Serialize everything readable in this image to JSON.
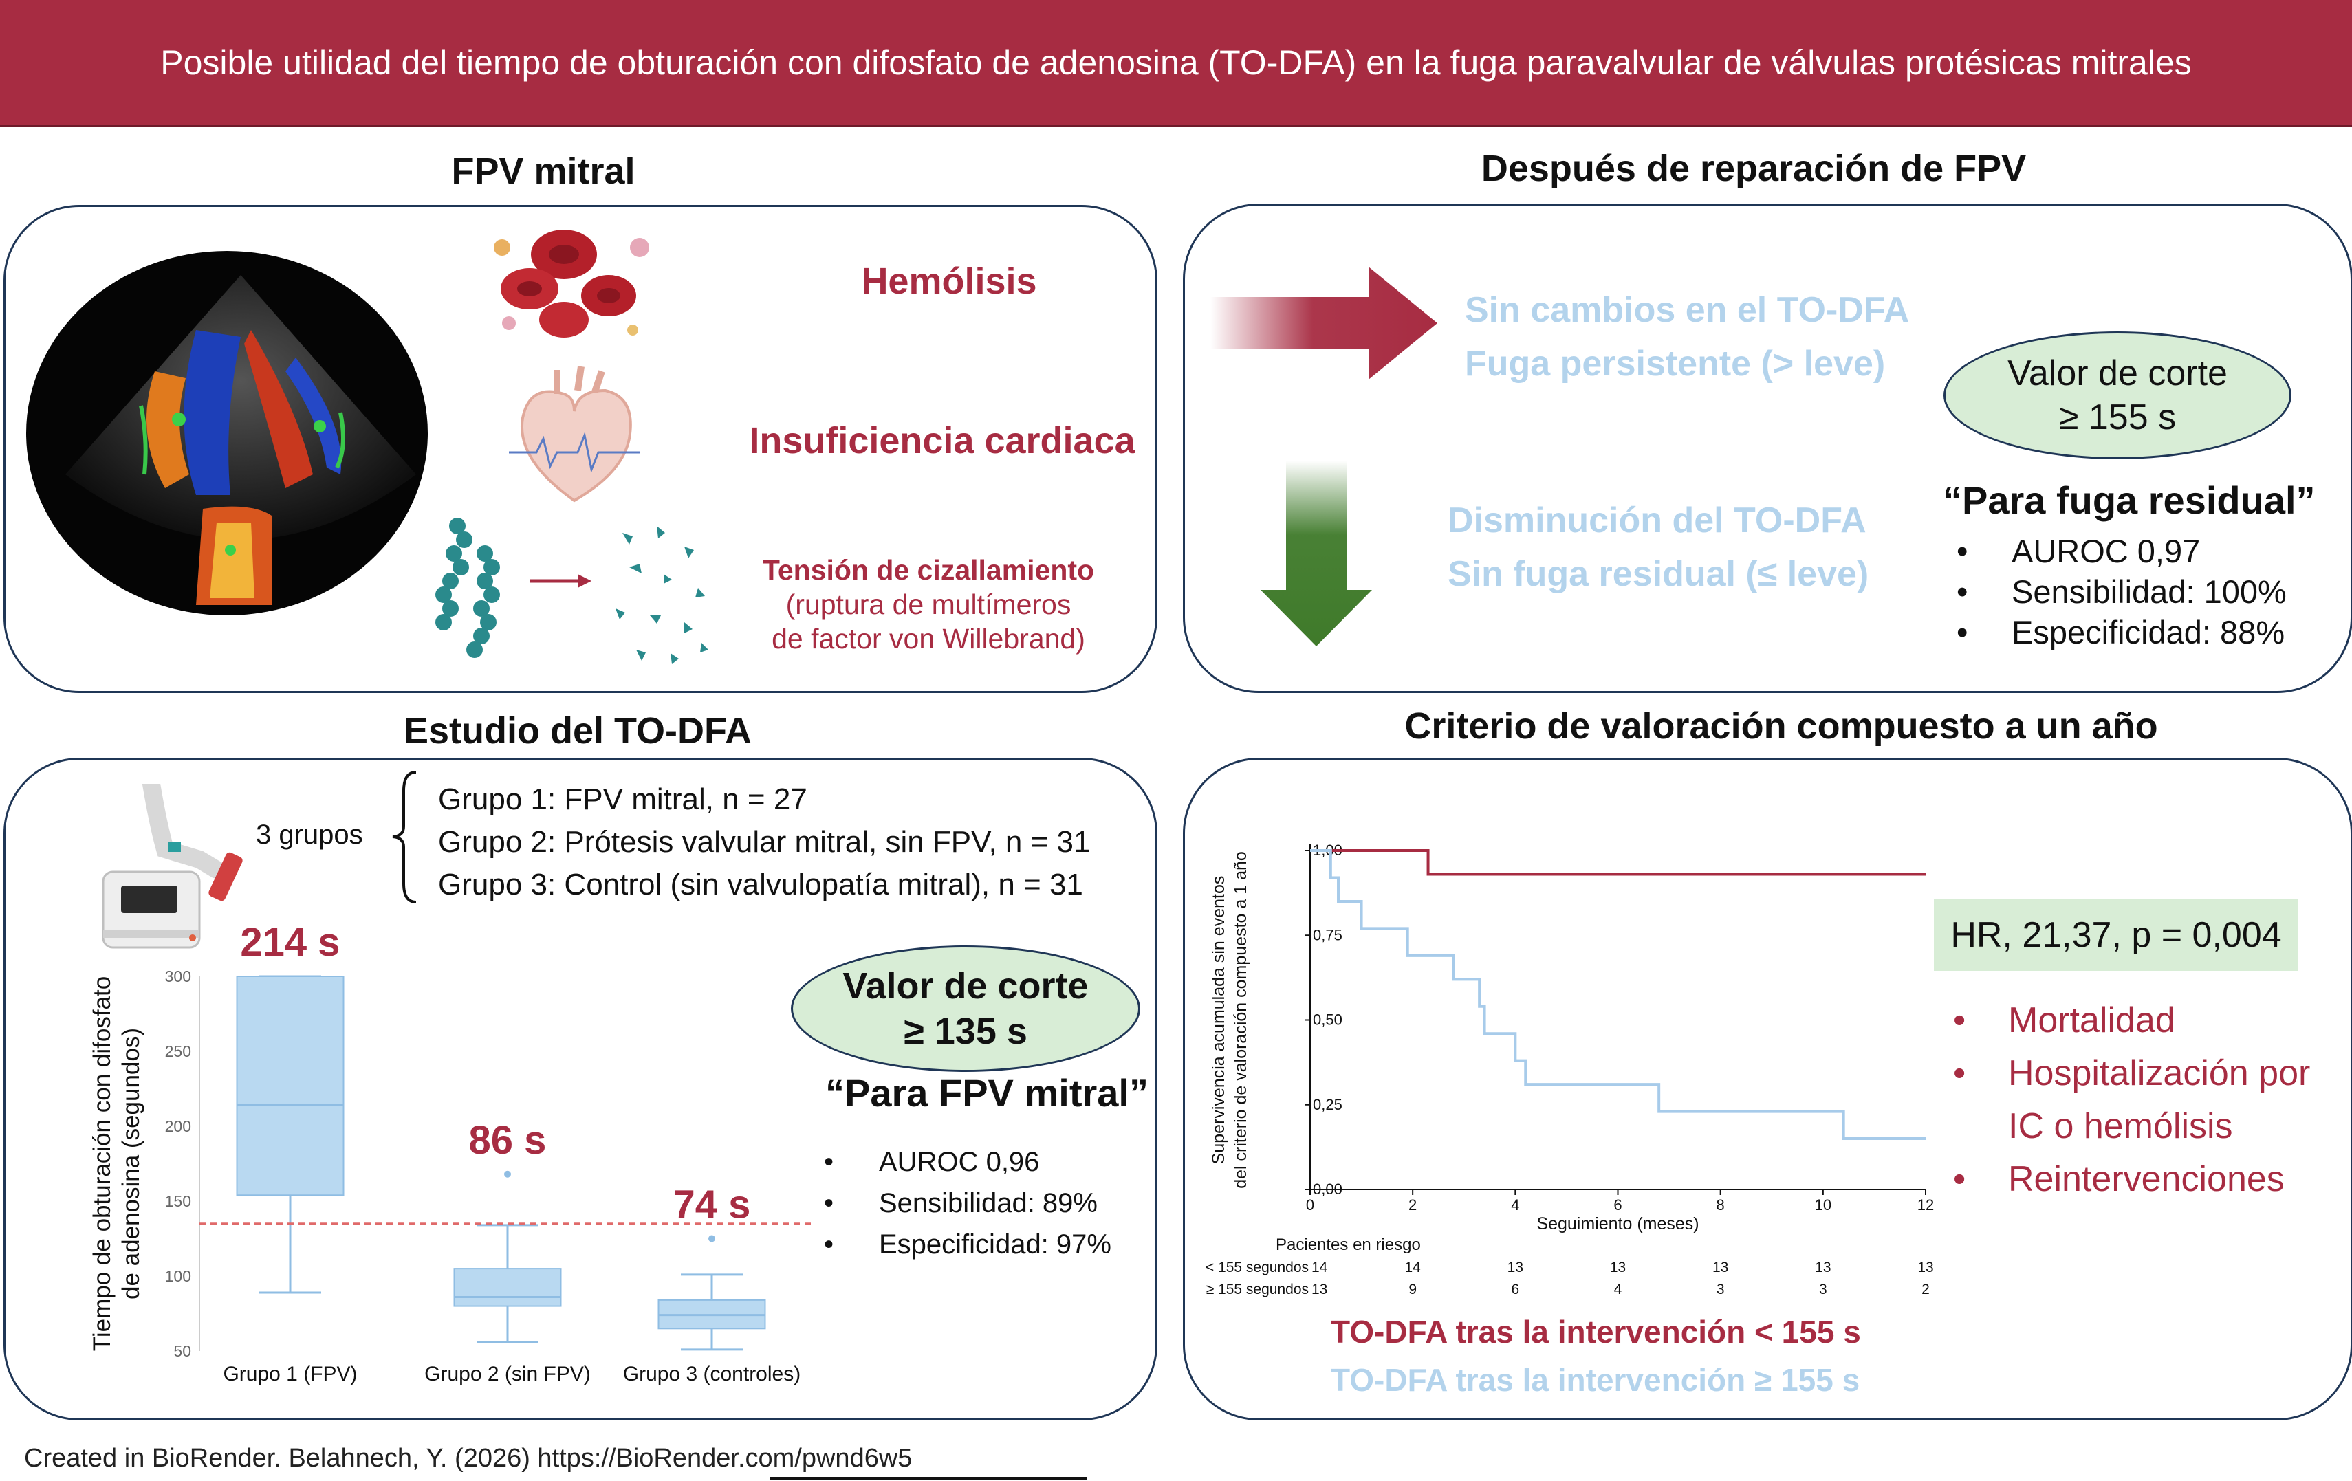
{
  "title": "Posible utilidad del tiempo de obturación con difosfato de adenosina (TO-DFA) en la fuga paravalvular de válvulas protésicas mitrales",
  "panel_fpv": {
    "title": "FPV mitral",
    "hemolysis": "Hemólisis",
    "heart_failure": "Insuficiencia cardiaca",
    "shear_title": "Tensión de cizallamiento",
    "shear_line1": "(ruptura de multímeros",
    "shear_line2": "de factor von Willebrand)"
  },
  "panel_after": {
    "title": "Después de reparación de FPV",
    "no_change_line1": "Sin cambios en el TO-DFA",
    "no_change_line2": "Fuga persistente (> leve)",
    "decrease_line1": "Disminución del TO-DFA",
    "decrease_line2": "Sin fuga residual (≤ leve)",
    "cutoff_line1": "Valor de corte",
    "cutoff_line2": "≥ 155 s",
    "residual_title": "“Para fuga residual”",
    "stats": [
      "AUROC 0,97",
      "Sensibilidad: 100%",
      "Especificidad: 88%"
    ]
  },
  "panel_study": {
    "title": "Estudio del TO-DFA",
    "groups_label": "3 grupos",
    "groups": [
      "Grupo 1: FPV mitral, n = 27",
      "Grupo 2: Prótesis valvular mitral, sin FPV, n = 31",
      "Grupo 3: Control (sin valvulopatía mitral), n = 31"
    ],
    "cutoff_line1": "Valor de corte",
    "cutoff_line2": "≥ 135 s",
    "fpv_title": "“Para FPV mitral”",
    "stats": [
      "AUROC 0,96",
      "Sensibilidad: 89%",
      "Especificidad: 97%"
    ]
  },
  "panel_endpoint": {
    "title": "Criterio de valoración compuesto a un año",
    "hr": "HR, 21,37, p = 0,004",
    "events": [
      "Mortalidad",
      "Hospitalización por",
      "IC o hemólisis",
      "Reintervenciones"
    ],
    "legend_low": "TO-DFA tras la intervención < 155 s",
    "legend_high": "TO-DFA tras la intervención ≥ 155 s"
  },
  "credit": "Created in BioRender. Belahnech, Y. (2026) https://BioRender.com/pwnd6w5",
  "chart_data": [
    {
      "type": "box",
      "ylabel": "Tiempo de obturación con difosfato de adenosina (segundos)",
      "ylim": [
        50,
        300
      ],
      "yticks": [
        50,
        100,
        150,
        200,
        250,
        300
      ],
      "categories": [
        "Grupo 1 (FPV)",
        "Grupo 2 (sin FPV)",
        "Grupo 3 (controles)"
      ],
      "boxes": [
        {
          "whisker_low": 89,
          "q1": 154,
          "median": 214,
          "q3": 300,
          "whisker_high": 300,
          "outliers": [],
          "label": "214 s"
        },
        {
          "whisker_low": 56,
          "q1": 80,
          "median": 86,
          "q3": 105,
          "whisker_high": 134,
          "outliers": [
            168
          ],
          "label": "86 s"
        },
        {
          "whisker_low": 51,
          "q1": 65,
          "median": 74,
          "q3": 84,
          "whisker_high": 101,
          "outliers": [
            125
          ],
          "label": "74 s"
        }
      ],
      "reference_line": 135,
      "colors": {
        "box": "#b9d9f1",
        "line": "#8fbde3",
        "labels": "#a72c42",
        "reference": "#e06a6a"
      }
    },
    {
      "type": "line",
      "xlabel": "Seguimiento (meses)",
      "ylabel_line1": "Supervivencia acumulada sin eventos",
      "ylabel_line2": "del criterio de valoración compuesto a 1 año",
      "xlim": [
        0,
        12
      ],
      "ylim": [
        0,
        1
      ],
      "xticks": [
        "0",
        "2",
        "4",
        "6",
        "8",
        "10",
        "12"
      ],
      "yticks": [
        "0,00",
        "0,25",
        "0,50",
        "0,75",
        "1,00"
      ],
      "series": [
        {
          "name": "TO-DFA tras la intervención < 155 s",
          "color": "#a72c42",
          "x": [
            0,
            2.3,
            2.3,
            12
          ],
          "y": [
            1.0,
            1.0,
            0.93,
            0.93
          ]
        },
        {
          "name": "TO-DFA tras la intervención ≥ 155 s",
          "color": "#a7cbea",
          "x": [
            0,
            0.4,
            0.4,
            0.55,
            0.55,
            1.0,
            1.0,
            1.9,
            1.9,
            2.8,
            2.8,
            3.3,
            3.3,
            3.4,
            3.4,
            4.0,
            4.0,
            4.2,
            4.2,
            4.3,
            4.3,
            6.8,
            6.8,
            10.4,
            10.4,
            12
          ],
          "y": [
            1.0,
            1.0,
            0.92,
            0.92,
            0.85,
            0.85,
            0.77,
            0.77,
            0.69,
            0.69,
            0.62,
            0.62,
            0.54,
            0.54,
            0.46,
            0.46,
            0.38,
            0.38,
            0.31,
            0.31,
            0.31,
            0.31,
            0.23,
            0.23,
            0.15,
            0.15
          ]
        }
      ],
      "risk_table": {
        "title": "Pacientes en riesgo",
        "rows": [
          {
            "label": "< 155 segundos",
            "values": [
              "14",
              "14",
              "13",
              "13",
              "13",
              "13",
              "13"
            ]
          },
          {
            "label": "≥ 155 segundos",
            "values": [
              "13",
              "9",
              "6",
              "4",
              "3",
              "3",
              "2"
            ]
          }
        ]
      }
    }
  ]
}
